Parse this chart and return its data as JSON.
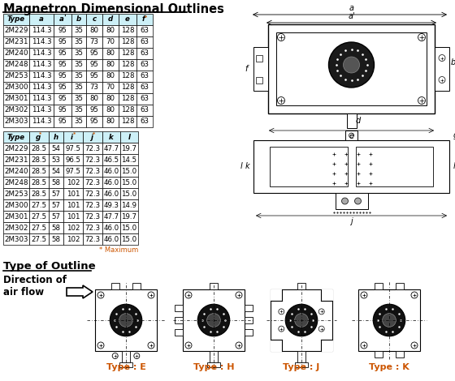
{
  "title": "Magnetron Dimensional Outlines",
  "table1_headers": [
    "Type",
    "a",
    "a'",
    "b",
    "c",
    "d",
    "e",
    "f*"
  ],
  "table1_data": [
    [
      "2M229",
      "114.3",
      "95",
      "35",
      "80",
      "80",
      "128",
      "63"
    ],
    [
      "2M231",
      "114.3",
      "95",
      "35",
      "73",
      "70",
      "128",
      "63"
    ],
    [
      "2M240",
      "114.3",
      "95",
      "35",
      "95",
      "80",
      "128",
      "63"
    ],
    [
      "2M248",
      "114.3",
      "95",
      "35",
      "95",
      "80",
      "128",
      "63"
    ],
    [
      "2M253",
      "114.3",
      "95",
      "35",
      "95",
      "80",
      "128",
      "63"
    ],
    [
      "2M300",
      "114.3",
      "95",
      "35",
      "73",
      "70",
      "128",
      "63"
    ],
    [
      "2M301",
      "114.3",
      "95",
      "35",
      "80",
      "80",
      "128",
      "63"
    ],
    [
      "2M302",
      "114.3",
      "95",
      "35",
      "95",
      "80",
      "128",
      "63"
    ],
    [
      "2M303",
      "114.3",
      "95",
      "35",
      "95",
      "80",
      "128",
      "63"
    ]
  ],
  "table2_headers": [
    "Type",
    "g*",
    "h",
    "i*",
    "j*",
    "k",
    "l"
  ],
  "table2_data": [
    [
      "2M229",
      "28.5",
      "54",
      "97.5",
      "72.3",
      "47.7",
      "19.7"
    ],
    [
      "2M231",
      "28.5",
      "53",
      "96.5",
      "72.3",
      "46.5",
      "14.5"
    ],
    [
      "2M240",
      "28.5",
      "54",
      "97.5",
      "72.3",
      "46.0",
      "15.0"
    ],
    [
      "2M248",
      "28.5",
      "58",
      "102",
      "72.3",
      "46.0",
      "15.0"
    ],
    [
      "2M253",
      "28.5",
      "57",
      "101",
      "72.3",
      "46.0",
      "15.0"
    ],
    [
      "2M300",
      "27.5",
      "57",
      "101",
      "72.3",
      "49.3",
      "14.9"
    ],
    [
      "2M301",
      "27.5",
      "57",
      "101",
      "72.3",
      "47.7",
      "19.7"
    ],
    [
      "2M302",
      "27.5",
      "58",
      "102",
      "72.3",
      "46.0",
      "15.0"
    ],
    [
      "2M303",
      "27.5",
      "58",
      "102",
      "72.3",
      "46.0",
      "15.0"
    ]
  ],
  "max_note": "* Maximum",
  "outline_title": "Type of Outline",
  "direction_label": "Direction of\nair flow",
  "type_labels": [
    "Type : E",
    "Type : H",
    "Type : J",
    "Type : K"
  ],
  "header_bg": "#cdf0f7",
  "bg_color": "#ffffff"
}
